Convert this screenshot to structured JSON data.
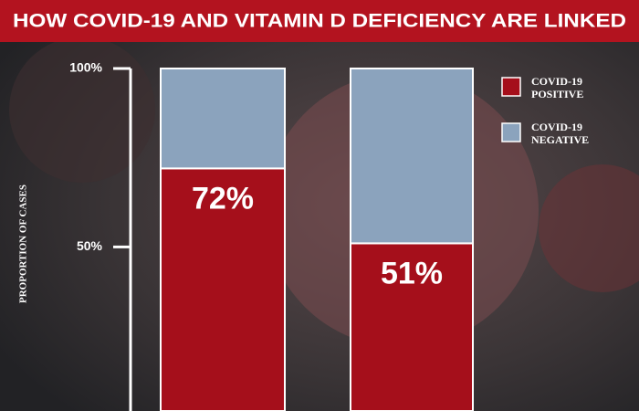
{
  "chart_data": {
    "type": "stacked-bar",
    "title": "HOW COVID-19 AND VITAMIN D DEFICIENCY ARE LINKED",
    "y_label": "PROPORTION OF CASES",
    "categories": [
      null,
      null
    ],
    "series": [
      {
        "name": "COVID-19 POSITIVE",
        "color": "#a50f1b",
        "values": [
          72,
          51
        ],
        "value_labels": [
          "72%",
          "51%"
        ]
      },
      {
        "name": "COVID-19 NEGATIVE",
        "color": "#8ba3bd",
        "values": [
          28,
          49
        ]
      }
    ],
    "ylim": [
      4,
      100
    ],
    "yticks": [
      {
        "value": 50,
        "label": "50%"
      },
      {
        "value": 100,
        "label": "100%"
      }
    ],
    "legend": "top-right"
  }
}
